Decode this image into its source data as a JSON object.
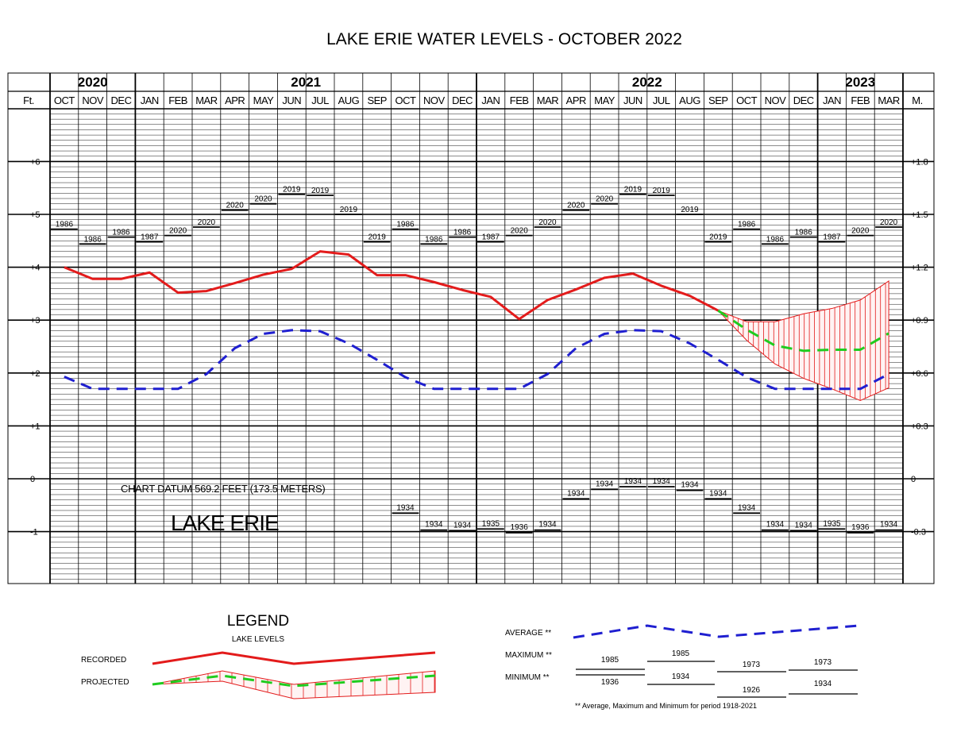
{
  "chart_data": {
    "type": "line",
    "title": "LAKE ERIE WATER LEVELS - OCTOBER 2022",
    "left_axis_unit": "Ft.",
    "right_axis_unit": "M.",
    "years": [
      {
        "label": "2020",
        "start": 0,
        "span": 3
      },
      {
        "label": "2021",
        "start": 3,
        "span": 12
      },
      {
        "label": "2022",
        "start": 15,
        "span": 12
      },
      {
        "label": "2023",
        "start": 27,
        "span": 3
      }
    ],
    "months": [
      "OCT",
      "NOV",
      "DEC",
      "JAN",
      "FEB",
      "MAR",
      "APR",
      "MAY",
      "JUN",
      "JUL",
      "AUG",
      "SEP",
      "OCT",
      "NOV",
      "DEC",
      "JAN",
      "FEB",
      "MAR",
      "APR",
      "MAY",
      "JUN",
      "JUL",
      "AUG",
      "SEP",
      "OCT",
      "NOV",
      "DEC",
      "JAN",
      "FEB",
      "MAR"
    ],
    "ylim_ft": [
      -2,
      7
    ],
    "left_ticks": [
      {
        "v": 6,
        "label": "+6"
      },
      {
        "v": 5,
        "label": "+5"
      },
      {
        "v": 4,
        "label": "+4"
      },
      {
        "v": 3,
        "label": "+3"
      },
      {
        "v": 2,
        "label": "+2"
      },
      {
        "v": 1,
        "label": "+1"
      },
      {
        "v": 0,
        "label": "0"
      },
      {
        "v": -1,
        "label": "-1"
      }
    ],
    "right_ticks": [
      {
        "v": 6,
        "label": "+1.8"
      },
      {
        "v": 5,
        "label": "+1.5"
      },
      {
        "v": 4,
        "label": "+1.2"
      },
      {
        "v": 3,
        "label": "+0.9"
      },
      {
        "v": 2,
        "label": "+0.6"
      },
      {
        "v": 1,
        "label": "+0.3"
      },
      {
        "v": 0,
        "label": "0"
      },
      {
        "v": -1,
        "label": "-0.3"
      }
    ],
    "series": [
      {
        "name": "RECORDED",
        "color": "#e31b1b",
        "style": "solid",
        "x": [
          0,
          1,
          2,
          3,
          4,
          5,
          6,
          7,
          8,
          9,
          10,
          11,
          12,
          13,
          14,
          15,
          16,
          17,
          18,
          19,
          20,
          21,
          22,
          23
        ],
        "values": [
          4.0,
          3.78,
          3.78,
          3.9,
          3.52,
          3.55,
          3.7,
          3.86,
          3.97,
          4.3,
          4.24,
          3.85,
          3.85,
          3.72,
          3.57,
          3.44,
          3.02,
          3.38,
          3.58,
          3.8,
          3.88,
          3.65,
          3.46,
          3.18
        ]
      },
      {
        "name": "AVERAGE",
        "color": "#1f1fd0",
        "style": "dashed",
        "x": [
          0,
          1,
          2,
          3,
          4,
          5,
          6,
          7,
          8,
          9,
          10,
          11,
          12,
          13,
          14,
          15,
          16,
          17,
          18,
          19,
          20,
          21,
          22,
          23,
          24,
          25,
          26,
          27,
          28,
          29
        ],
        "values": [
          1.93,
          1.7,
          1.7,
          1.7,
          1.7,
          1.98,
          2.47,
          2.74,
          2.81,
          2.79,
          2.56,
          2.25,
          1.92,
          1.7,
          1.7,
          1.7,
          1.7,
          1.98,
          2.47,
          2.74,
          2.81,
          2.79,
          2.56,
          2.25,
          1.92,
          1.7,
          1.7,
          1.7,
          1.7,
          1.98
        ]
      },
      {
        "name": "PROJECTED",
        "color": "#1fcc1f",
        "style": "dashed",
        "x": [
          23,
          24,
          25,
          26,
          27,
          28,
          29
        ],
        "values": [
          3.18,
          2.82,
          2.52,
          2.42,
          2.44,
          2.44,
          2.75
        ]
      }
    ],
    "projection_band": {
      "x": [
        23,
        24,
        25,
        26,
        27,
        28,
        29
      ],
      "upper": [
        3.18,
        2.97,
        2.97,
        3.12,
        3.22,
        3.38,
        3.74
      ],
      "lower": [
        3.18,
        2.62,
        2.17,
        1.9,
        1.7,
        1.48,
        1.72
      ]
    },
    "maximum_records": [
      {
        "value": 4.72,
        "year": "1986"
      },
      {
        "value": 4.44,
        "year": "1986"
      },
      {
        "value": 4.57,
        "year": "1986"
      },
      {
        "value": 4.48,
        "year": "1987"
      },
      {
        "value": 4.6,
        "year": "2020"
      },
      {
        "value": 4.76,
        "year": "2020"
      },
      {
        "value": 5.08,
        "year": "2020"
      },
      {
        "value": 5.2,
        "year": "2020"
      },
      {
        "value": 5.38,
        "year": "2019"
      },
      {
        "value": 5.36,
        "year": "2019"
      },
      {
        "value": 5.0,
        "year": "2019"
      },
      {
        "value": 4.48,
        "year": "2019"
      },
      {
        "value": 4.72,
        "year": "1986"
      },
      {
        "value": 4.44,
        "year": "1986"
      },
      {
        "value": 4.57,
        "year": "1986"
      },
      {
        "value": 4.48,
        "year": "1987"
      },
      {
        "value": 4.6,
        "year": "2020"
      },
      {
        "value": 4.76,
        "year": "2020"
      },
      {
        "value": 5.08,
        "year": "2020"
      },
      {
        "value": 5.2,
        "year": "2020"
      },
      {
        "value": 5.38,
        "year": "2019"
      },
      {
        "value": 5.36,
        "year": "2019"
      },
      {
        "value": 5.0,
        "year": "2019"
      },
      {
        "value": 4.48,
        "year": "2019"
      },
      {
        "value": 4.72,
        "year": "1986"
      },
      {
        "value": 4.44,
        "year": "1986"
      },
      {
        "value": 4.57,
        "year": "1986"
      },
      {
        "value": 4.48,
        "year": "1987"
      },
      {
        "value": 4.6,
        "year": "2020"
      },
      {
        "value": 4.76,
        "year": "2020"
      }
    ],
    "minimum_records": [
      {
        "col": 12,
        "value": -0.65,
        "year": "1934"
      },
      {
        "col": 13,
        "value": -0.97,
        "year": "1934"
      },
      {
        "col": 14,
        "value": -0.98,
        "year": "1934"
      },
      {
        "col": 15,
        "value": -0.95,
        "year": "1935"
      },
      {
        "col": 16,
        "value": -1.02,
        "year": "1936"
      },
      {
        "col": 17,
        "value": -0.97,
        "year": "1934"
      },
      {
        "col": 18,
        "value": -0.38,
        "year": "1934"
      },
      {
        "col": 19,
        "value": -0.2,
        "year": "1934"
      },
      {
        "col": 20,
        "value": -0.15,
        "year": "1934"
      },
      {
        "col": 21,
        "value": -0.15,
        "year": "1934"
      },
      {
        "col": 22,
        "value": -0.22,
        "year": "1934"
      },
      {
        "col": 23,
        "value": -0.38,
        "year": "1934"
      },
      {
        "col": 24,
        "value": -0.65,
        "year": "1934"
      },
      {
        "col": 25,
        "value": -0.97,
        "year": "1934"
      },
      {
        "col": 26,
        "value": -0.98,
        "year": "1934"
      },
      {
        "col": 27,
        "value": -0.95,
        "year": "1935"
      },
      {
        "col": 28,
        "value": -1.02,
        "year": "1936"
      },
      {
        "col": 29,
        "value": -0.97,
        "year": "1934"
      }
    ],
    "annotations": {
      "datum": "CHART DATUM  569.2 FEET (173.5 METERS)",
      "lake_name": "LAKE ERIE"
    }
  },
  "legend": {
    "title": "LEGEND",
    "subtitle": "LAKE LEVELS",
    "recorded_label": "RECORDED",
    "projected_label": "PROJECTED",
    "average_label": "AVERAGE **",
    "maximum_label": "MAXIMUM **",
    "minimum_label": "MINIMUM **",
    "maximum_years": [
      "1985",
      "1985",
      "1973",
      "1973"
    ],
    "minimum_years": [
      "1936",
      "1934",
      "1926",
      "1934"
    ],
    "footnote": "** Average, Maximum and Minimum for period 1918-2021"
  }
}
